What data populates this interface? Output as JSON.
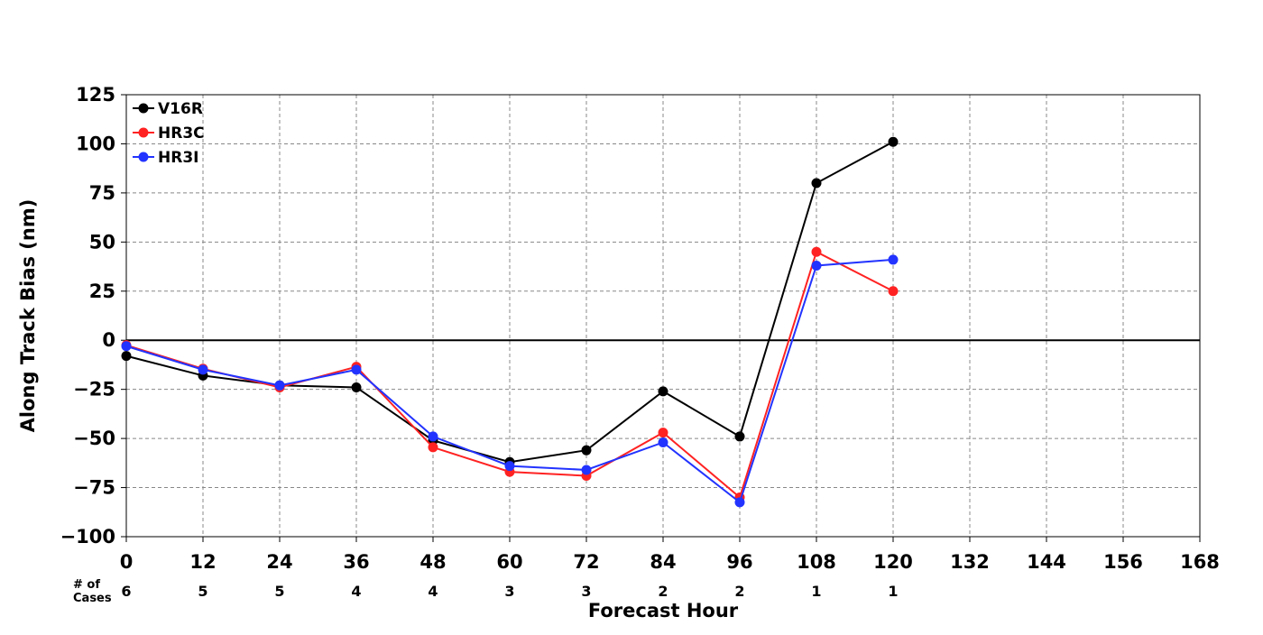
{
  "chart_data": {
    "type": "line",
    "xlabel": "Forecast Hour",
    "ylabel": "Along Track Bias (nm)",
    "xlim": [
      0,
      168
    ],
    "ylim": [
      -100,
      125
    ],
    "x_ticks": [
      0,
      12,
      24,
      36,
      48,
      60,
      72,
      84,
      96,
      108,
      120,
      132,
      144,
      156,
      168
    ],
    "y_ticks": [
      -100,
      -75,
      -50,
      -25,
      0,
      25,
      50,
      75,
      100,
      125
    ],
    "x_tick_labels": [
      "0",
      "12",
      "24",
      "36",
      "48",
      "60",
      "72",
      "84",
      "96",
      "108",
      "120",
      "132",
      "144",
      "156",
      "168"
    ],
    "y_tick_labels": [
      "−100",
      "−75",
      "−50",
      "−25",
      "0",
      "25",
      "50",
      "75",
      "100",
      "125"
    ],
    "grid": true,
    "grid_style": "dashed",
    "zero_line": true,
    "legend_position": "top-left",
    "x": [
      0,
      12,
      24,
      36,
      48,
      60,
      72,
      84,
      96,
      108,
      120
    ],
    "series": [
      {
        "name": "V16R",
        "color": "#000000",
        "values": [
          -8,
          -18,
          -23,
          -24,
          -51,
          -62,
          -56,
          -26,
          -49,
          80,
          101
        ]
      },
      {
        "name": "HR3C",
        "color": "#ff2222",
        "values": [
          -2.5,
          -14.5,
          -24,
          -13.5,
          -54.5,
          -67,
          -69,
          -47,
          -80,
          45,
          25
        ]
      },
      {
        "name": "HR3I",
        "color": "#2233ff",
        "values": [
          -3,
          -15,
          -23,
          -15,
          -49,
          -64,
          -66,
          -52,
          -82.5,
          38,
          41
        ]
      }
    ],
    "cases": {
      "label": "# of\nCases",
      "x": [
        0,
        12,
        24,
        36,
        48,
        60,
        72,
        84,
        96,
        108,
        120
      ],
      "values": [
        "6",
        "5",
        "5",
        "4",
        "4",
        "3",
        "3",
        "2",
        "2",
        "1",
        "1"
      ]
    }
  }
}
